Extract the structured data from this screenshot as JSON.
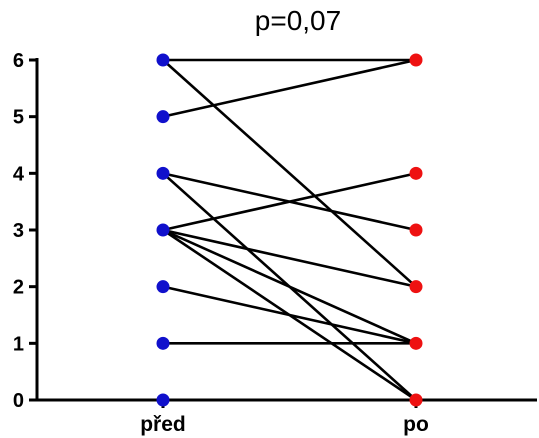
{
  "chart_data": {
    "type": "paired-dot",
    "title": "p=0,07",
    "categories": [
      "před",
      "po"
    ],
    "ylim": [
      0,
      6
    ],
    "yticks": [
      "0",
      "1",
      "2",
      "3",
      "4",
      "5",
      "6"
    ],
    "grid": false,
    "colors": {
      "před": "#1010cc",
      "po": "#ee1111"
    },
    "pairs": [
      {
        "před": 6,
        "po": 6
      },
      {
        "před": 6,
        "po": 2
      },
      {
        "před": 5,
        "po": 6
      },
      {
        "před": 4,
        "po": 3
      },
      {
        "před": 4,
        "po": 0
      },
      {
        "před": 3,
        "po": 4
      },
      {
        "před": 3,
        "po": 2
      },
      {
        "před": 3,
        "po": 1
      },
      {
        "před": 3,
        "po": 0
      },
      {
        "před": 2,
        "po": 1
      },
      {
        "před": 1,
        "po": 1
      },
      {
        "před": 0,
        "po": 0
      }
    ]
  }
}
